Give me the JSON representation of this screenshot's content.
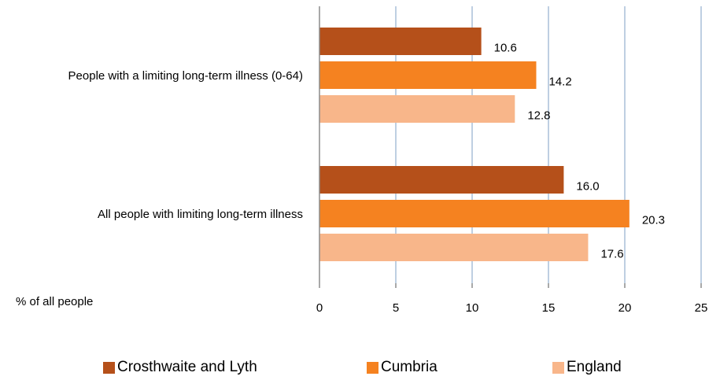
{
  "chart_data": {
    "type": "bar",
    "orientation": "horizontal",
    "categories": [
      "People with a limiting long-term illness (0-64)",
      "All people  with limiting long-term illness"
    ],
    "series": [
      {
        "name": "Crosthwaite and Lyth",
        "color": "#b5501a",
        "values": [
          10.6,
          16.0
        ],
        "labels": [
          "10.6",
          "16.0"
        ]
      },
      {
        "name": "Cumbria",
        "color": "#f58220",
        "values": [
          14.2,
          20.3
        ],
        "labels": [
          "14.2",
          "20.3"
        ]
      },
      {
        "name": "England",
        "color": "#f8b68a",
        "values": [
          12.8,
          17.6
        ],
        "labels": [
          "12.8",
          "17.6"
        ]
      }
    ],
    "xlim": [
      0,
      25
    ],
    "xticks": [
      "0",
      "5",
      "10",
      "15",
      "20",
      "25"
    ],
    "xlabel": "% of all people",
    "grid": true,
    "legend_position": "bottom"
  }
}
